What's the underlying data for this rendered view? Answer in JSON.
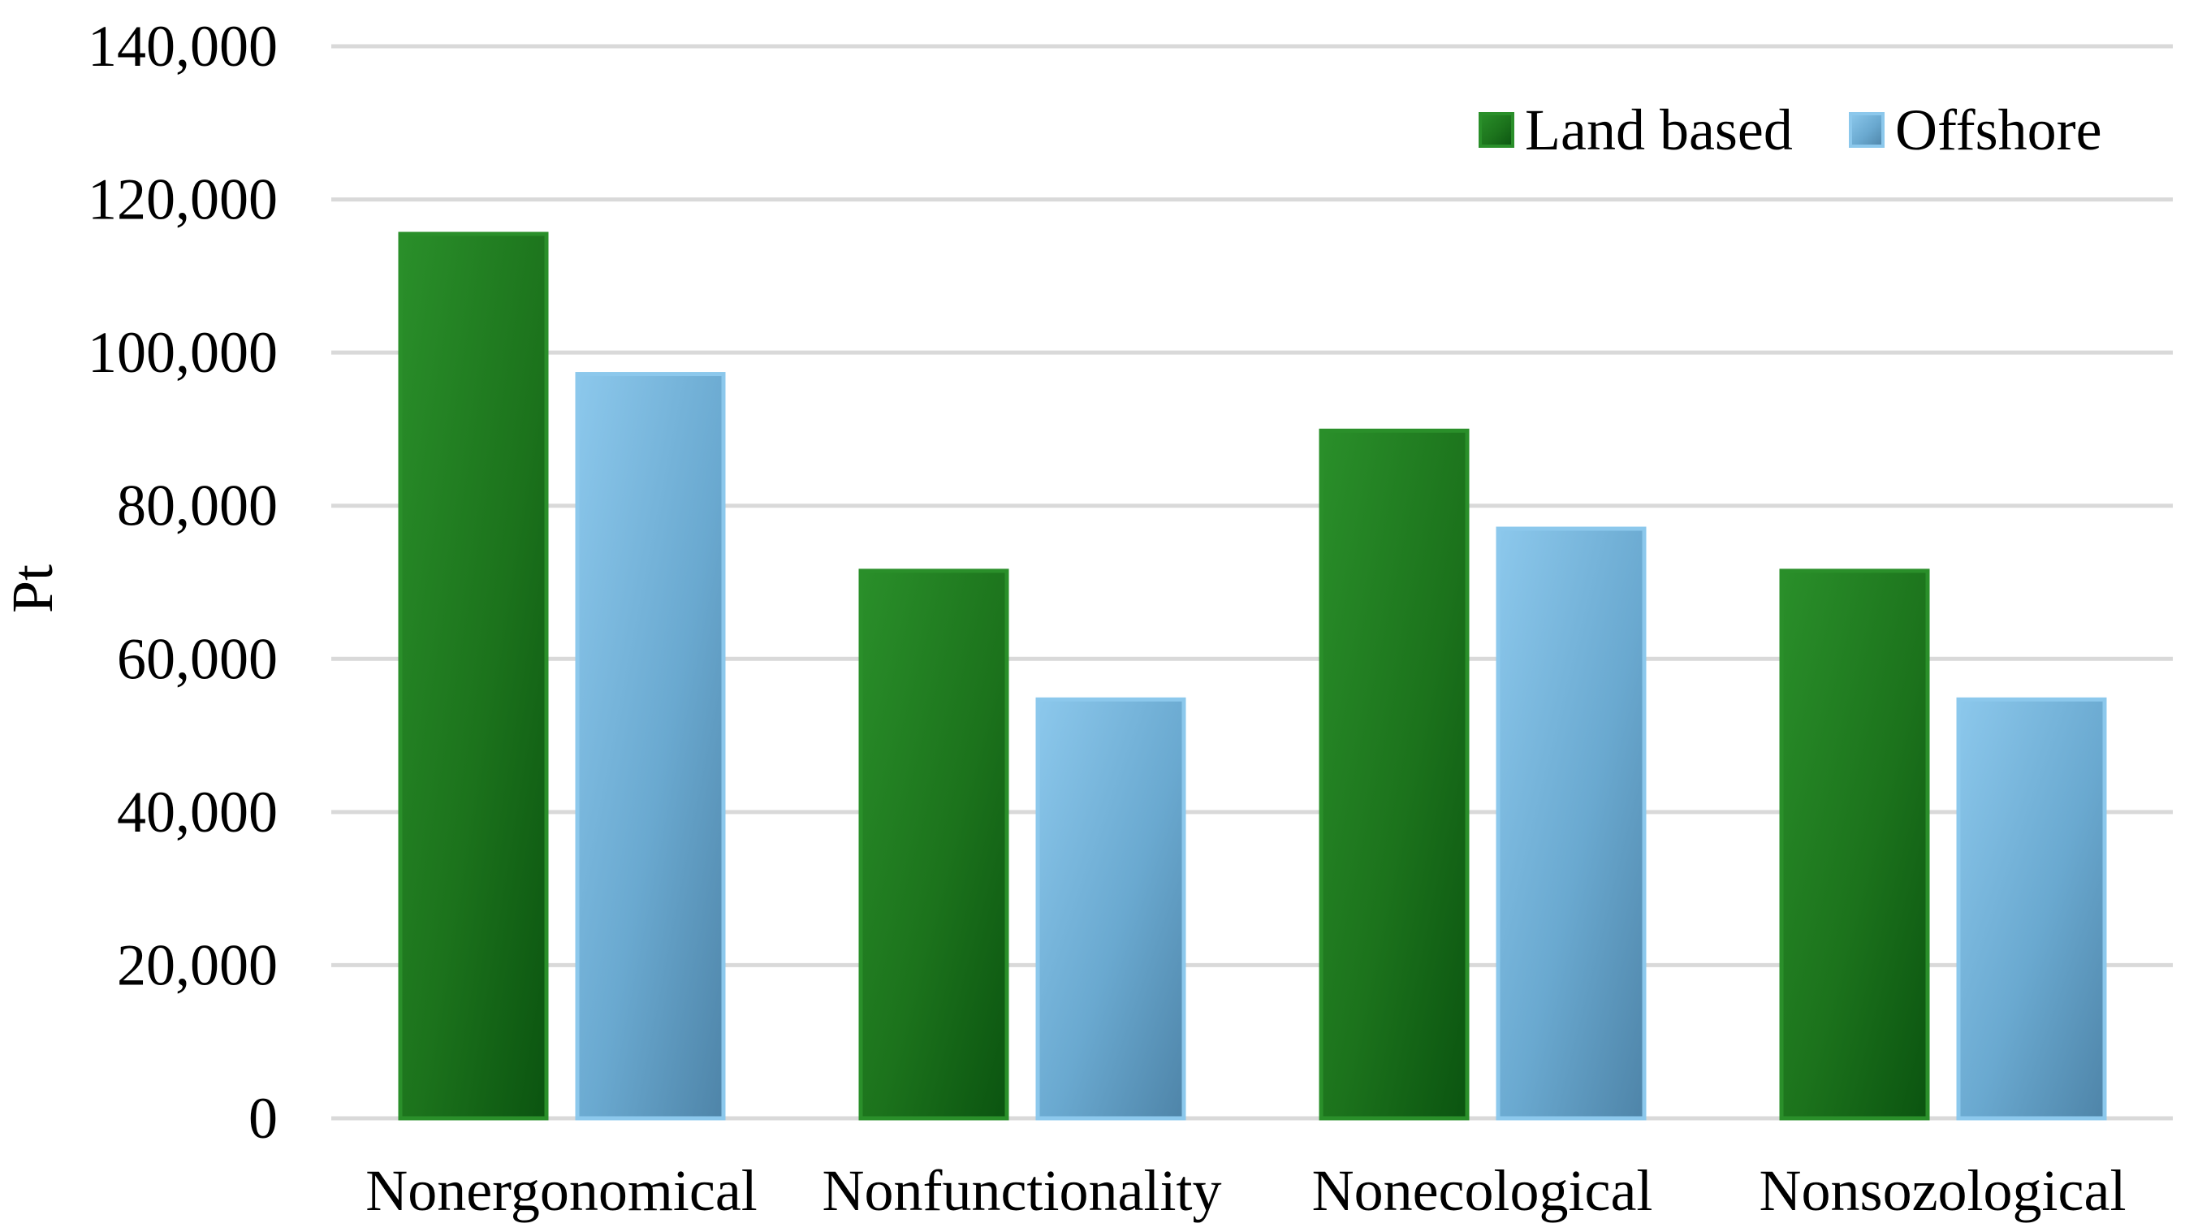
{
  "chart_data": {
    "type": "bar",
    "title": "",
    "xlabel": "",
    "ylabel": "Pt",
    "ylim": [
      0,
      140000
    ],
    "ytick_step": 20000,
    "yticks": [
      "0",
      "20,000",
      "40,000",
      "60,000",
      "80,000",
      "100,000",
      "120,000",
      "140,000"
    ],
    "grid": true,
    "legend_position": "top-right",
    "categories": [
      "Nonergonomical",
      "Nonfunctionality",
      "Nonecological",
      "Nonsozological"
    ],
    "series": [
      {
        "name": "Land based",
        "color": "#1f7a1f",
        "values": [
          115500,
          71500,
          89800,
          71500
        ]
      },
      {
        "name": "Offshore",
        "color": "#6aaed6",
        "values": [
          97200,
          54700,
          77000,
          54700
        ]
      }
    ]
  }
}
